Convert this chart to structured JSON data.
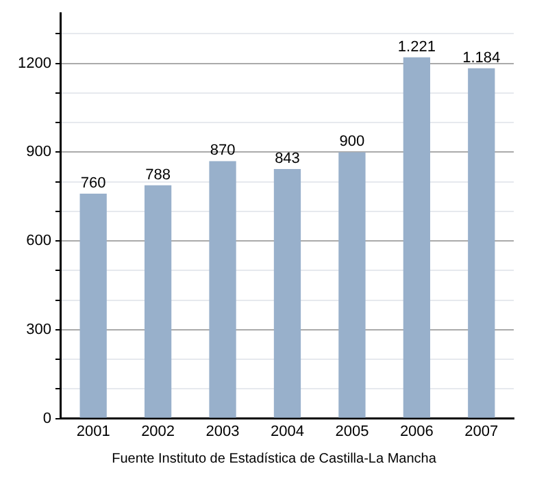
{
  "chart_data": {
    "type": "bar",
    "categories": [
      "2001",
      "2002",
      "2003",
      "2004",
      "2005",
      "2006",
      "2007"
    ],
    "values": [
      760,
      788,
      870,
      843,
      900,
      1221,
      1184
    ],
    "value_labels": [
      "760",
      "788",
      "870",
      "843",
      "900",
      "1.221",
      "1.184"
    ],
    "color": "#98b0cb",
    "ylim": [
      0,
      1370
    ],
    "yticks": [
      0,
      {
        "value": 100,
        "label": null
      },
      {
        "value": 200,
        "label": null
      },
      300,
      {
        "value": 400,
        "label": null
      },
      {
        "value": 500,
        "label": null
      },
      600,
      {
        "value": 700,
        "label": null
      },
      {
        "value": 800,
        "label": null
      },
      900,
      {
        "value": 1000,
        "label": null
      },
      {
        "value": 1100,
        "label": null
      },
      1200,
      {
        "value": 1300,
        "label": null
      }
    ],
    "grid": "y",
    "legend": false,
    "annotations": [
      "Fuente Instituto de Estadística de Castilla-La Mancha"
    ]
  }
}
